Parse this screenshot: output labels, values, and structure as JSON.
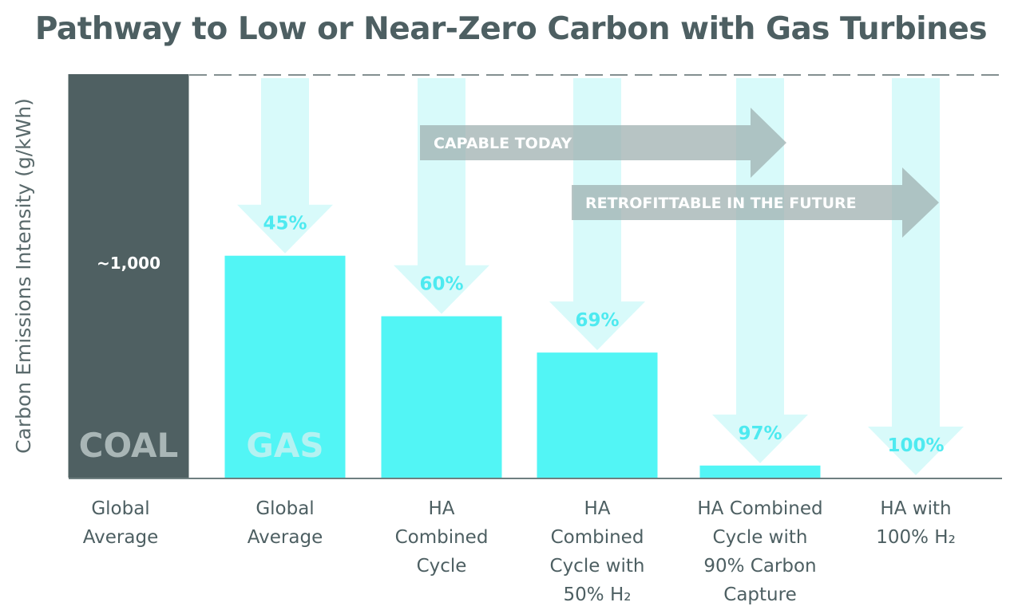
{
  "title": "Pathway to Low or Near-Zero Carbon with Gas Turbines",
  "chart_data": {
    "type": "bar",
    "title": "Pathway to Low or Near-Zero Carbon with Gas Turbines",
    "ylabel": "Carbon Emissions Intensity (g/kWh)",
    "xlabel": "",
    "ylim": [
      0,
      1000
    ],
    "grid": false,
    "categories": [
      [
        "Global",
        "Average"
      ],
      [
        "Global",
        "Average"
      ],
      [
        "HA",
        "Combined",
        "Cycle"
      ],
      [
        "HA",
        "Combined",
        "Cycle with",
        "50% H₂"
      ],
      [
        "HA Combined",
        "Cycle with",
        "90% Carbon",
        "Capture"
      ],
      [
        "HA with",
        "100% H₂"
      ]
    ],
    "values": [
      1000,
      550,
      400,
      310,
      30,
      0
    ],
    "reductions": [
      "",
      "45%",
      "60%",
      "69%",
      "97%",
      "100%"
    ],
    "bar_labels": [
      "~1,000",
      "",
      "",
      "",
      "",
      ""
    ],
    "group_labels": [
      "COAL",
      "GAS"
    ],
    "annotations": [
      "CAPABLE TODAY",
      "RETROFITTABLE IN THE FUTURE"
    ],
    "colors": {
      "coal": "#4f6062",
      "gas": "#52f5f5",
      "arrow": "#d8fafa",
      "percent": "#4eeaf0",
      "banner": "#9fb0b0"
    }
  }
}
